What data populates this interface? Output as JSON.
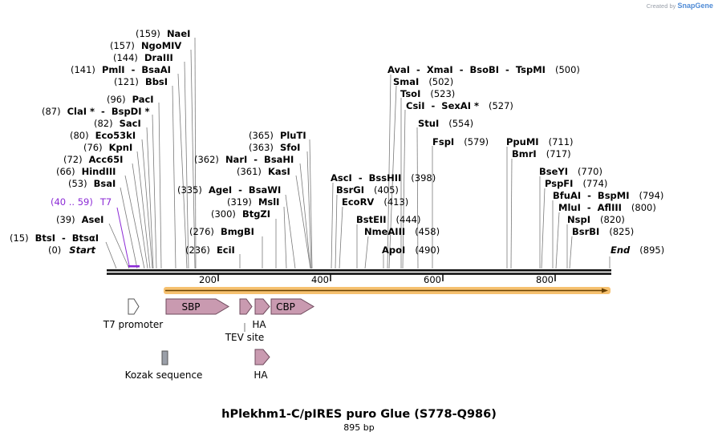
{
  "app": {
    "credit_prefix": "Created by",
    "credit_brand": "SnapGene"
  },
  "plasmid": {
    "name": "hPlekhm1-C/pIRES puro Glue (S778-Q986)",
    "length_label": "895 bp",
    "length": 895
  },
  "ends": {
    "start_pos": "(0)",
    "start_label": "Start",
    "end_label": "End",
    "end_pos": "(895)"
  },
  "ruler": {
    "ticks": [
      "200",
      "400",
      "600",
      "800"
    ]
  },
  "enzymes": [
    {
      "pos": "(159)",
      "name": "NaeI"
    },
    {
      "pos": "(157)",
      "name": "NgoMIV"
    },
    {
      "pos": "(144)",
      "name": "DraIII"
    },
    {
      "pos": "(141)",
      "name": "PmlI  -  BsaAI"
    },
    {
      "pos": "(121)",
      "name": "BbsI"
    },
    {
      "pos": "(96)",
      "name": "PacI"
    },
    {
      "pos": "(87)",
      "name": "ClaI *  -  BspDI *"
    },
    {
      "pos": "(82)",
      "name": "SacI"
    },
    {
      "pos": "(80)",
      "name": "Eco53kI"
    },
    {
      "pos": "(76)",
      "name": "KpnI"
    },
    {
      "pos": "(72)",
      "name": "Acc65I"
    },
    {
      "pos": "(66)",
      "name": "HindIII"
    },
    {
      "pos": "(53)",
      "name": "BsaI"
    },
    {
      "pos": "(39)",
      "name": "AseI"
    },
    {
      "pos": "(15)",
      "name": "BtsI  -  BtsαI"
    },
    {
      "pos": "(365)",
      "name": "PluTI"
    },
    {
      "pos": "(363)",
      "name": "SfoI"
    },
    {
      "pos": "(362)",
      "name": "NarI  -  BsaHI"
    },
    {
      "pos": "(361)",
      "name": "KasI"
    },
    {
      "pos": "(335)",
      "name": "AgeI  -  BsaWI"
    },
    {
      "pos": "(319)",
      "name": "MslI"
    },
    {
      "pos": "(300)",
      "name": "BtgZI"
    },
    {
      "pos": "(276)",
      "name": "BmgBI"
    },
    {
      "pos": "(236)",
      "name": "EciI"
    },
    {
      "pos": "(500)",
      "name": "AvaI  -  XmaI  -  BsoBI  -  TspMI"
    },
    {
      "pos": "(502)",
      "name": "SmaI"
    },
    {
      "pos": "(523)",
      "name": "TsoI"
    },
    {
      "pos": "(527)",
      "name": "CsiI  -  SexAI *"
    },
    {
      "pos": "(554)",
      "name": "StuI"
    },
    {
      "pos": "(579)",
      "name": "FspI"
    },
    {
      "pos": "(398)",
      "name": "AscI  -  BssHII"
    },
    {
      "pos": "(405)",
      "name": "BsrGI"
    },
    {
      "pos": "(413)",
      "name": "EcoRV"
    },
    {
      "pos": "(444)",
      "name": "BstEII"
    },
    {
      "pos": "(458)",
      "name": "NmeAIII"
    },
    {
      "pos": "(490)",
      "name": "ApoI"
    },
    {
      "pos": "(711)",
      "name": "PpuMI"
    },
    {
      "pos": "(717)",
      "name": "BmrI"
    },
    {
      "pos": "(770)",
      "name": "BseYI"
    },
    {
      "pos": "(774)",
      "name": "PspFI"
    },
    {
      "pos": "(794)",
      "name": "BfuAI  -  BspMI"
    },
    {
      "pos": "(800)",
      "name": "MluI  -  AflIII"
    },
    {
      "pos": "(820)",
      "name": "NspI"
    },
    {
      "pos": "(825)",
      "name": "BsrBI"
    }
  ],
  "primer": {
    "range": "(40 .. 59)",
    "name": "T7"
  },
  "features": {
    "t7_promoter": "T7 promoter",
    "sbp": "SBP",
    "tev_site": "TEV site",
    "ha_top": "HA",
    "cbp": "CBP",
    "kozak": "Kozak sequence",
    "ha_bottom": "HA"
  },
  "colors": {
    "feature_fill": "#c99ab0",
    "feature_stroke": "#6e4a5c",
    "orf_outer": "#f6c170",
    "orf_arrow": "#6a4200",
    "primer": "#8c2bd6",
    "kozak_fill": "#9a9fa8"
  }
}
